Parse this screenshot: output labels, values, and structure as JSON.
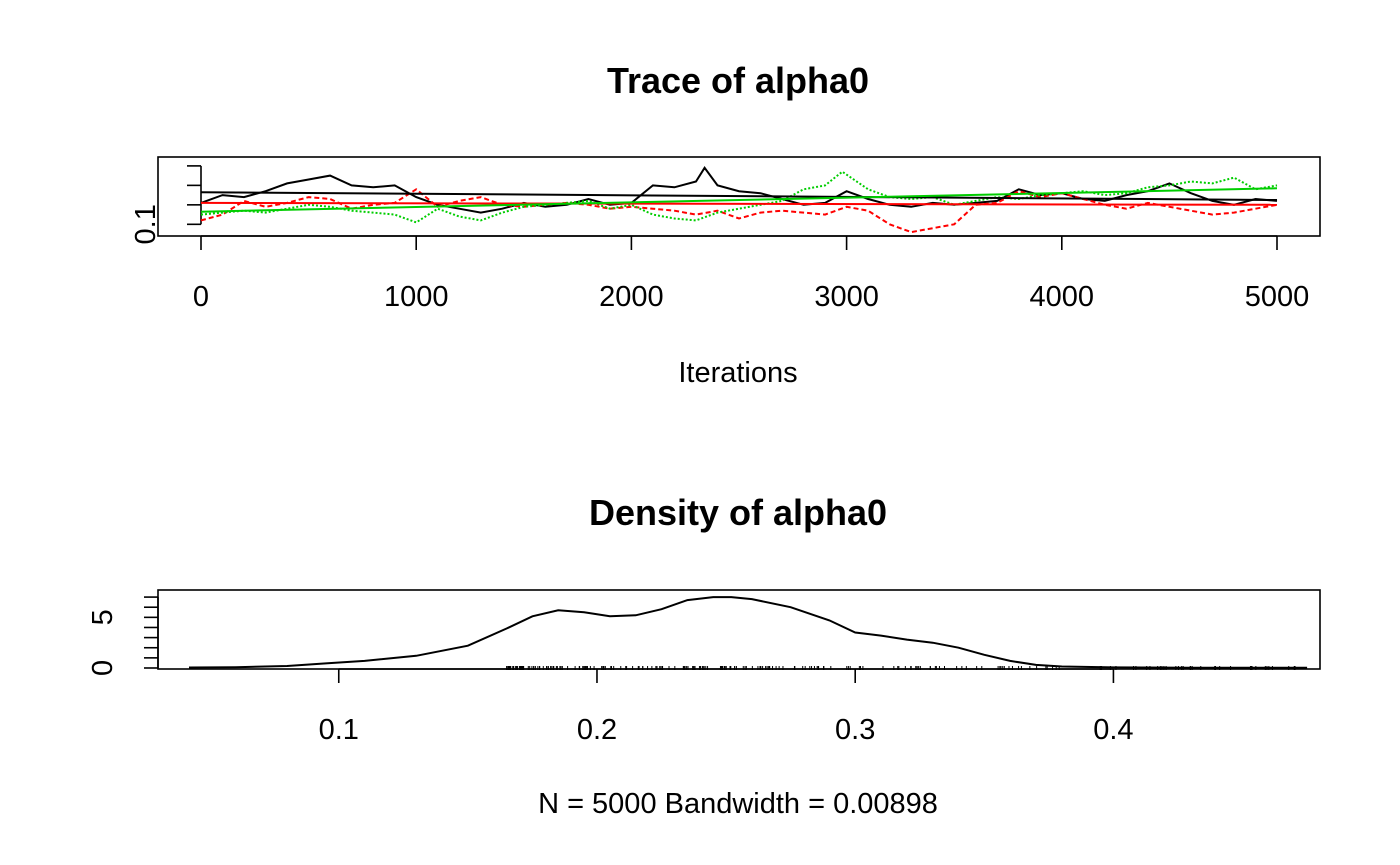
{
  "chart_data": [
    {
      "type": "line",
      "title": "Trace of alpha0",
      "xlabel": "Iterations",
      "ylabel": "",
      "xlim": [
        0,
        5000
      ],
      "ylim": [
        0.04,
        0.42
      ],
      "x_ticks": [
        0,
        1000,
        2000,
        3000,
        4000,
        5000
      ],
      "x_tick_labels": [
        "0",
        "1000",
        "2000",
        "3000",
        "4000",
        "5000"
      ],
      "y_ticks": [
        0.1,
        0.2,
        0.3,
        0.4
      ],
      "y_tick_labels": [
        "0.1",
        "",
        "",
        ""
      ],
      "legend": "none",
      "series": [
        {
          "color": "#000000",
          "linestyle": "solid",
          "x": [
            0,
            100,
            200,
            300,
            400,
            500,
            600,
            700,
            800,
            900,
            1000,
            1100,
            1200,
            1300,
            1400,
            1500,
            1600,
            1700,
            1800,
            1900,
            2000,
            2100,
            2200,
            2300,
            2340,
            2400,
            2500,
            2600,
            2700,
            2800,
            2900,
            3000,
            3100,
            3200,
            3300,
            3400,
            3500,
            3600,
            3700,
            3800,
            3900,
            4000,
            4100,
            4200,
            4300,
            4400,
            4500,
            4600,
            4700,
            4800,
            4900,
            5000
          ],
          "values": [
            0.21,
            0.25,
            0.24,
            0.27,
            0.31,
            0.33,
            0.35,
            0.3,
            0.29,
            0.3,
            0.24,
            0.2,
            0.18,
            0.16,
            0.18,
            0.21,
            0.19,
            0.2,
            0.23,
            0.2,
            0.21,
            0.3,
            0.29,
            0.32,
            0.39,
            0.3,
            0.27,
            0.26,
            0.23,
            0.2,
            0.21,
            0.27,
            0.23,
            0.2,
            0.19,
            0.21,
            0.2,
            0.21,
            0.22,
            0.28,
            0.25,
            0.26,
            0.23,
            0.22,
            0.25,
            0.27,
            0.31,
            0.26,
            0.22,
            0.2,
            0.23,
            0.22
          ]
        },
        {
          "color": "#ff0000",
          "linestyle": "dashed",
          "x": [
            0,
            100,
            200,
            300,
            400,
            500,
            600,
            700,
            800,
            900,
            1000,
            1100,
            1200,
            1300,
            1400,
            1500,
            1600,
            1700,
            1800,
            1900,
            2000,
            2100,
            2200,
            2300,
            2400,
            2500,
            2600,
            2700,
            2800,
            2900,
            3000,
            3100,
            3200,
            3300,
            3400,
            3500,
            3600,
            3700,
            3800,
            3900,
            4000,
            4100,
            4200,
            4300,
            4400,
            4500,
            4600,
            4700,
            4800,
            4900,
            5000
          ],
          "values": [
            0.12,
            0.15,
            0.22,
            0.19,
            0.21,
            0.24,
            0.23,
            0.18,
            0.2,
            0.21,
            0.28,
            0.19,
            0.22,
            0.24,
            0.2,
            0.19,
            0.2,
            0.21,
            0.2,
            0.18,
            0.19,
            0.18,
            0.17,
            0.15,
            0.17,
            0.13,
            0.16,
            0.17,
            0.16,
            0.15,
            0.19,
            0.17,
            0.1,
            0.06,
            0.08,
            0.1,
            0.2,
            0.21,
            0.27,
            0.24,
            0.26,
            0.23,
            0.2,
            0.18,
            0.21,
            0.19,
            0.17,
            0.15,
            0.16,
            0.18,
            0.2
          ]
        },
        {
          "color": "#00cd00",
          "linestyle": "dotted",
          "x": [
            0,
            100,
            200,
            300,
            400,
            500,
            600,
            700,
            800,
            900,
            1000,
            1100,
            1200,
            1300,
            1400,
            1500,
            1600,
            1700,
            1800,
            1900,
            2000,
            2100,
            2200,
            2300,
            2400,
            2500,
            2600,
            2700,
            2800,
            2900,
            2980,
            3100,
            3200,
            3300,
            3400,
            3500,
            3600,
            3700,
            3800,
            3900,
            4000,
            4100,
            4200,
            4300,
            4400,
            4500,
            4600,
            4700,
            4800,
            4900,
            5000
          ],
          "values": [
            0.15,
            0.16,
            0.17,
            0.16,
            0.18,
            0.2,
            0.19,
            0.17,
            0.16,
            0.15,
            0.11,
            0.18,
            0.14,
            0.12,
            0.16,
            0.19,
            0.2,
            0.21,
            0.22,
            0.18,
            0.2,
            0.15,
            0.13,
            0.12,
            0.16,
            0.18,
            0.2,
            0.22,
            0.28,
            0.3,
            0.37,
            0.28,
            0.24,
            0.23,
            0.24,
            0.2,
            0.22,
            0.24,
            0.23,
            0.25,
            0.26,
            0.27,
            0.25,
            0.26,
            0.29,
            0.3,
            0.32,
            0.31,
            0.34,
            0.28,
            0.3
          ]
        },
        {
          "color": "#000000",
          "linestyle": "solid",
          "x": [
            0,
            5000
          ],
          "values": [
            0.265,
            0.225
          ]
        },
        {
          "color": "#ff0000",
          "linestyle": "solid",
          "x": [
            0,
            5000
          ],
          "values": [
            0.21,
            0.2
          ]
        },
        {
          "color": "#00cd00",
          "linestyle": "solid",
          "x": [
            0,
            5000
          ],
          "values": [
            0.165,
            0.285
          ]
        }
      ]
    },
    {
      "type": "area",
      "title": "Density of alpha0",
      "xlabel": "N = 5000   Bandwidth = 0.00898",
      "ylabel": "",
      "xlim": [
        0.03,
        0.48
      ],
      "ylim": [
        -0.1,
        7.7
      ],
      "x_ticks": [
        0.1,
        0.2,
        0.3,
        0.4
      ],
      "x_tick_labels": [
        "0.1",
        "0.2",
        "0.3",
        "0.4"
      ],
      "y_ticks": [
        0,
        1,
        2,
        3,
        4,
        5,
        6,
        7
      ],
      "y_tick_labels": [
        "0",
        "",
        "",
        "",
        "",
        "5",
        "",
        ""
      ],
      "legend": "none",
      "series": [
        {
          "color": "#000000",
          "x": [
            0.042,
            0.06,
            0.08,
            0.095,
            0.11,
            0.13,
            0.15,
            0.165,
            0.175,
            0.185,
            0.195,
            0.205,
            0.215,
            0.225,
            0.235,
            0.245,
            0.252,
            0.26,
            0.275,
            0.29,
            0.3,
            0.31,
            0.32,
            0.33,
            0.34,
            0.35,
            0.36,
            0.37,
            0.38,
            0.4,
            0.43,
            0.475
          ],
          "values": [
            0.05,
            0.08,
            0.2,
            0.45,
            0.7,
            1.2,
            2.2,
            3.9,
            5.1,
            5.7,
            5.5,
            5.1,
            5.2,
            5.8,
            6.7,
            7.0,
            7.0,
            6.8,
            6.0,
            4.7,
            3.5,
            3.2,
            2.8,
            2.5,
            2.0,
            1.3,
            0.7,
            0.3,
            0.15,
            0.06,
            0.03,
            0.02
          ]
        }
      ],
      "rug": {
        "from": 0.165,
        "to": 0.475
      }
    }
  ]
}
